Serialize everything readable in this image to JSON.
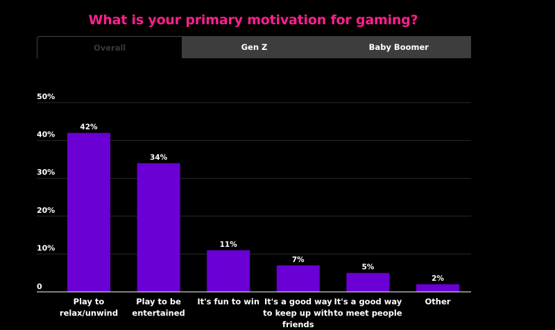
{
  "title": "What is your primary motivation for gaming?",
  "tabs": [
    {
      "label": "Overall",
      "active": true
    },
    {
      "label": "Gen Z",
      "active": false
    },
    {
      "label": "Baby Boomer",
      "active": false
    }
  ],
  "colors": {
    "title": "#ff1f8e",
    "bar": "#6a00d4",
    "tab_bg": "#3d3d3d"
  },
  "chart_data": {
    "type": "bar",
    "categories": [
      [
        "Play to",
        "relax/unwind"
      ],
      [
        "Play to be",
        "entertained"
      ],
      [
        "It's fun to win"
      ],
      [
        "It's a good way",
        "to keep up with",
        "friends"
      ],
      [
        "It's a good way",
        "to meet people"
      ],
      [
        "Other"
      ]
    ],
    "values": [
      42,
      34,
      11,
      7,
      5,
      2
    ],
    "data_labels": [
      "42%",
      "34%",
      "11%",
      "7%",
      "5%",
      "2%"
    ],
    "yticks": [
      0,
      10,
      20,
      30,
      40,
      50
    ],
    "ytick_labels": [
      "0",
      "10%",
      "20%",
      "30%",
      "40%",
      "50%"
    ],
    "ylim": [
      0,
      50
    ],
    "grid": true,
    "legend": "none"
  }
}
